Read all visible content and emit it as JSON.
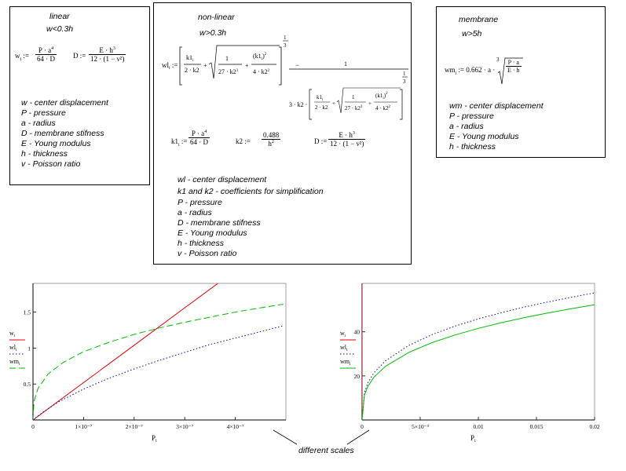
{
  "linear": {
    "title": "linear",
    "condition": "w<0.3h",
    "formula_w_lhs": "w",
    "formula_w_sub": "i",
    "formula_w_num": "P · a",
    "formula_w_num_sub": "i",
    "formula_w_num_exp": "4",
    "formula_w_den": "64 · D",
    "formula_D_lhs": "D :=",
    "formula_D_num": "E · h",
    "formula_D_num_exp": "3",
    "formula_D_den": "12 · (1 − ν²)",
    "legend": [
      "w - center displacement",
      "P - pressure",
      "a - radius",
      "D - membrane stifness",
      "E - Young modulus",
      "h - thickness",
      "v - Poisson ratio"
    ]
  },
  "nonlinear": {
    "title": "non-linear",
    "condition": "w>0.3h",
    "formula_wl_lhs": "wl",
    "formula_k1_lhs": "k1",
    "formula_k1_num": "P · a",
    "formula_k1_den": "64 · D",
    "formula_k2_lhs": "k2 :=",
    "formula_k2_num": "0.488",
    "formula_k2_den": "h",
    "formula_D_lhs": "D :=",
    "formula_D_num": "E · h",
    "formula_D_den": "12 · (1 − ν²)",
    "legend": [
      "wl - center displacement",
      "k1 and k2 - coefficients for simplification",
      "P - pressure",
      "a - radius",
      "D - membrane stifness",
      "E - Young modulus",
      "h - thickness",
      "v - Poisson ratio"
    ]
  },
  "membrane": {
    "title": "membrane",
    "condition": "w>5h",
    "formula_lhs": "wm",
    "formula_rhs": "0.662 · a ·",
    "formula_root_num": "P · a",
    "formula_root_den": "E · h",
    "legend": [
      "wm - center displacement",
      "P - pressure",
      "a - radius",
      "E - Young modulus",
      "h - thickness"
    ]
  },
  "annotation": "different scales",
  "chart_data": [
    {
      "type": "line",
      "xlabel": "P",
      "xlabel_sub": "i",
      "xlim": [
        0,
        5e-07
      ],
      "ylim": [
        0,
        1.9
      ],
      "x_ticks": [
        {
          "v": 0,
          "label": "0"
        },
        {
          "v": 1e-07,
          "label": "1×10⁻⁷"
        },
        {
          "v": 2e-07,
          "label": "2×10⁻⁷"
        },
        {
          "v": 3e-07,
          "label": "3×10⁻⁷"
        },
        {
          "v": 4e-07,
          "label": "4×10⁻⁷"
        }
      ],
      "y_ticks": [
        {
          "v": 0.5,
          "label": "0.5"
        },
        {
          "v": 1,
          "label": "1"
        },
        {
          "v": 1.5,
          "label": "1.5"
        }
      ],
      "series": [
        {
          "name": "w",
          "sub": "i",
          "color": "#e00000",
          "dash": "",
          "x": [
            0,
            1e-07,
            2e-07,
            3e-07,
            3.87e-07
          ],
          "y": [
            0,
            0.52,
            1.04,
            1.56,
            2.01
          ]
        },
        {
          "name": "wl",
          "sub": "i",
          "color": "#0000cc",
          "dash": "1.5,2.5",
          "x": [
            0,
            2e-08,
            5e-08,
            1e-07,
            1.5e-07,
            2e-07,
            2.5e-07,
            3e-07,
            3.5e-07,
            4e-07,
            4.5e-07,
            4.95e-07
          ],
          "y": [
            0,
            0.11,
            0.25,
            0.43,
            0.58,
            0.71,
            0.83,
            0.94,
            1.05,
            1.14,
            1.23,
            1.31
          ]
        },
        {
          "name": "wm",
          "sub": "i",
          "color": "#00bb00",
          "dash": "8,4",
          "x": [
            0,
            2e-09,
            1e-08,
            3e-08,
            6e-08,
            1e-07,
            1.5e-07,
            2e-07,
            2.5e-07,
            3e-07,
            3.5e-07,
            4e-07,
            4.5e-07,
            4.95e-07
          ],
          "y": [
            0,
            0.26,
            0.44,
            0.64,
            0.8,
            0.95,
            1.08,
            1.19,
            1.28,
            1.36,
            1.43,
            1.5,
            1.56,
            1.61
          ]
        }
      ]
    },
    {
      "type": "line",
      "xlabel": "P",
      "xlabel_sub": "i",
      "xlim": [
        0,
        0.02
      ],
      "ylim": [
        0,
        62
      ],
      "x_ticks": [
        {
          "v": 0,
          "label": "0"
        },
        {
          "v": 0.005,
          "label": "5×10⁻³"
        },
        {
          "v": 0.01,
          "label": "0.01"
        },
        {
          "v": 0.015,
          "label": "0.015"
        },
        {
          "v": 0.02,
          "label": "0.02"
        }
      ],
      "y_ticks": [
        {
          "v": 20,
          "label": "20"
        },
        {
          "v": 40,
          "label": "40"
        }
      ],
      "series": [
        {
          "name": "w",
          "sub": "i",
          "color": "#e00000",
          "dash": "",
          "x": [
            0,
            1e-07
          ],
          "y": [
            0,
            62
          ]
        },
        {
          "name": "wl",
          "sub": "i",
          "color": "#0000cc",
          "dash": "1.5,2.5",
          "x": [
            0,
            0.0002,
            0.0005,
            0.001,
            0.002,
            0.004,
            0.006,
            0.008,
            0.01,
            0.012,
            0.014,
            0.016,
            0.018,
            0.02
          ],
          "y": [
            0,
            12.4,
            16.9,
            21.3,
            26.8,
            33.8,
            38.7,
            42.6,
            45.9,
            48.7,
            51.3,
            53.6,
            55.7,
            57.7
          ]
        },
        {
          "name": "wm",
          "sub": "i",
          "color": "#00bb00",
          "dash": "",
          "x": [
            0,
            0.0002,
            0.0005,
            0.001,
            0.002,
            0.004,
            0.006,
            0.008,
            0.01,
            0.012,
            0.014,
            0.016,
            0.018,
            0.02
          ],
          "y": [
            0,
            11.3,
            15.3,
            19.3,
            24.3,
            30.6,
            35.1,
            38.6,
            41.6,
            44.2,
            46.5,
            48.6,
            50.5,
            52.3
          ]
        }
      ]
    }
  ]
}
